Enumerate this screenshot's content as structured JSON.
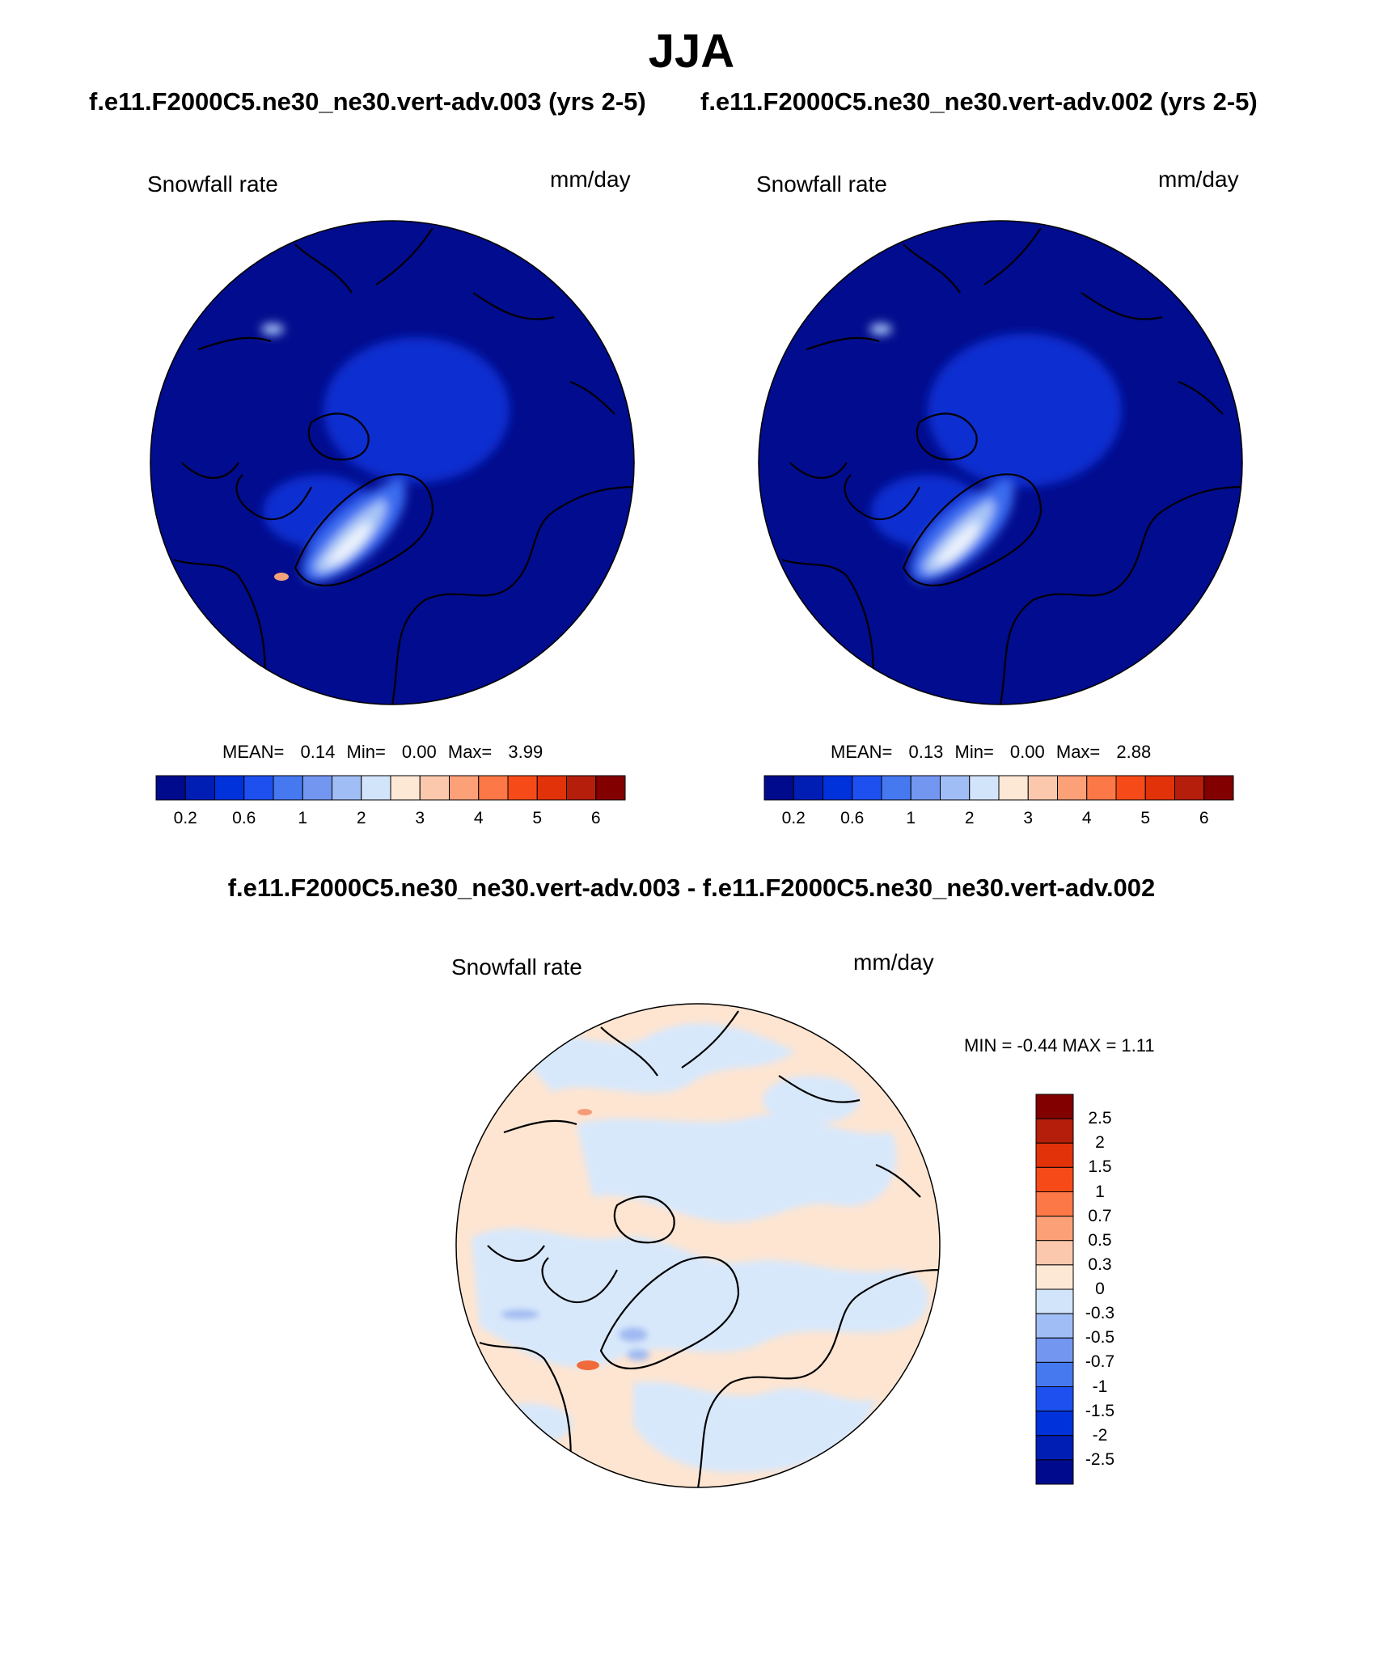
{
  "figure": {
    "season": "JJA",
    "case_a_title": "f.e11.F2000C5.ne30_ne30.vert-adv.003 (yrs 2-5)",
    "case_b_title": "f.e11.F2000C5.ne30_ne30.vert-adv.002 (yrs 2-5)",
    "diff_title": "f.e11.F2000C5.ne30_ne30.vert-adv.003 - f.e11.F2000C5.ne30_ne30.vert-adv.002"
  },
  "panels": [
    {
      "variable": "Snowfall rate",
      "units": "mm/day",
      "mean_label": "MEAN=",
      "mean_value": "0.14",
      "min_label": "Min=",
      "min_value": "0.00",
      "max_label": "Max=",
      "max_value": "3.99"
    },
    {
      "variable": "Snowfall rate",
      "units": "mm/day",
      "mean_label": "MEAN=",
      "mean_value": "0.13",
      "min_label": "Min=",
      "min_value": "0.00",
      "max_label": "Max=",
      "max_value": "2.88"
    }
  ],
  "diff_panel": {
    "variable": "Snowfall rate",
    "units": "mm/day",
    "minmax_text": "MIN =  -0.44 MAX =    1.11"
  },
  "colorbar_abs": {
    "colors": [
      "#000a8c",
      "#001eb4",
      "#0032dc",
      "#1e50f0",
      "#4678f0",
      "#7396f0",
      "#a0bdf5",
      "#d2e4fa",
      "#fde8d6",
      "#fcc8ad",
      "#fca078",
      "#fc7846",
      "#f64b19",
      "#e1320a",
      "#b41e0a",
      "#820000"
    ],
    "tick_labels": [
      "0.2",
      "0.6",
      "1",
      "2",
      "3",
      "4",
      "5",
      "6"
    ]
  },
  "colorbar_diff": {
    "colors_top_to_bottom": [
      "#820000",
      "#b41e0a",
      "#e1320a",
      "#f64b19",
      "#fc7846",
      "#fca078",
      "#fcc8ad",
      "#fde8d6",
      "#d2e4fa",
      "#a0bdf5",
      "#7396f0",
      "#4678f0",
      "#1e50f0",
      "#0032dc",
      "#001eb4",
      "#000a8c"
    ],
    "tick_labels": [
      "2.5",
      "2",
      "1.5",
      "1",
      "0.7",
      "0.5",
      "0.3",
      "0",
      "-0.3",
      "-0.5",
      "-0.7",
      "-1",
      "-1.5",
      "-2",
      "-2.5"
    ]
  },
  "map_colors": {
    "ocean_base": "#020c8e",
    "field_mid": "#0a2fd0",
    "field_light": "#3b6cf0",
    "field_pale": "#a9c6f7",
    "field_white": "#eef4fd",
    "field_hot": "#f3a27a",
    "diff_pos": "#fde5d2",
    "diff_neg": "#d8e8fb",
    "diff_blue": "#9fbaf2",
    "diff_red": "#f06a3a"
  }
}
